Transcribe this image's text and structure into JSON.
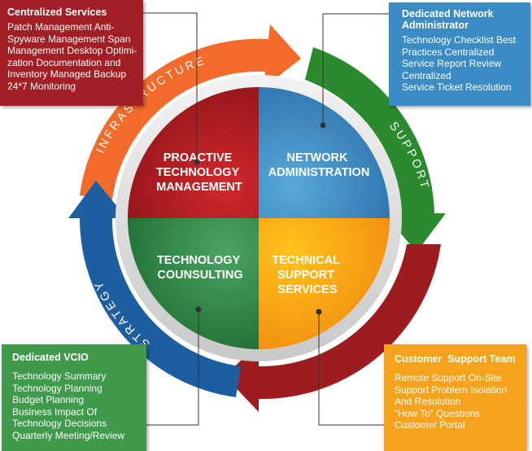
{
  "arrows": {
    "top": "INFRASTRUCTURE",
    "right": "SUPPORT",
    "left": "STRATEGY"
  },
  "quadrants": {
    "top_left": [
      "PROACTIVE",
      "TECHNOLOGY",
      "MANAGEMENT"
    ],
    "top_right": [
      "NETWORK",
      "ADMINISTRATION"
    ],
    "bottom_left": [
      "TECHNOLOGY",
      "COUNSULTING"
    ],
    "bottom_right": [
      "TECHNICAL",
      "SUPPORT",
      "SERVICES"
    ]
  },
  "boxes": {
    "top_left": {
      "title": "Centralized Services",
      "lines": [
        "Patch Management Anti-",
        "Spyware Management Span",
        "Management Desktop Optimi-",
        "zation Documentation and",
        "Inventory Managed Backup",
        "24*7 Monitoring"
      ]
    },
    "top_right": {
      "title_lines": [
        "Dedicated Network",
        "Administrator"
      ],
      "lines": [
        "Technology Checklist Best",
        "Practices Centralized",
        "Service Report Review",
        "Centralized",
        "Service Ticket Resolution"
      ]
    },
    "bottom_left": {
      "title": "Dedicated VCIO",
      "lines": [
        "Technology Summary",
        "Technology Planning",
        "Budget Planning",
        "Business Impact Of",
        "Technology Decisions",
        "Quarterly Meeting/Review"
      ]
    },
    "bottom_right": {
      "title": "Customer  Support Team",
      "lines": [
        "Remote Support On-Site",
        "Support Problem Isolation",
        "And Resolution",
        "“How To” Questions",
        "Customer Portal"
      ]
    }
  },
  "colors": {
    "red": "#b21f25",
    "blue": "#3a8cc6",
    "green": "#2f8a47",
    "orange": "#f7a31b",
    "arrow_top": "#f06a2c",
    "arrow_right": "#2c8a2f",
    "arrow_bottom": "#9b1b1f",
    "arrow_left": "#1d5fa0"
  }
}
